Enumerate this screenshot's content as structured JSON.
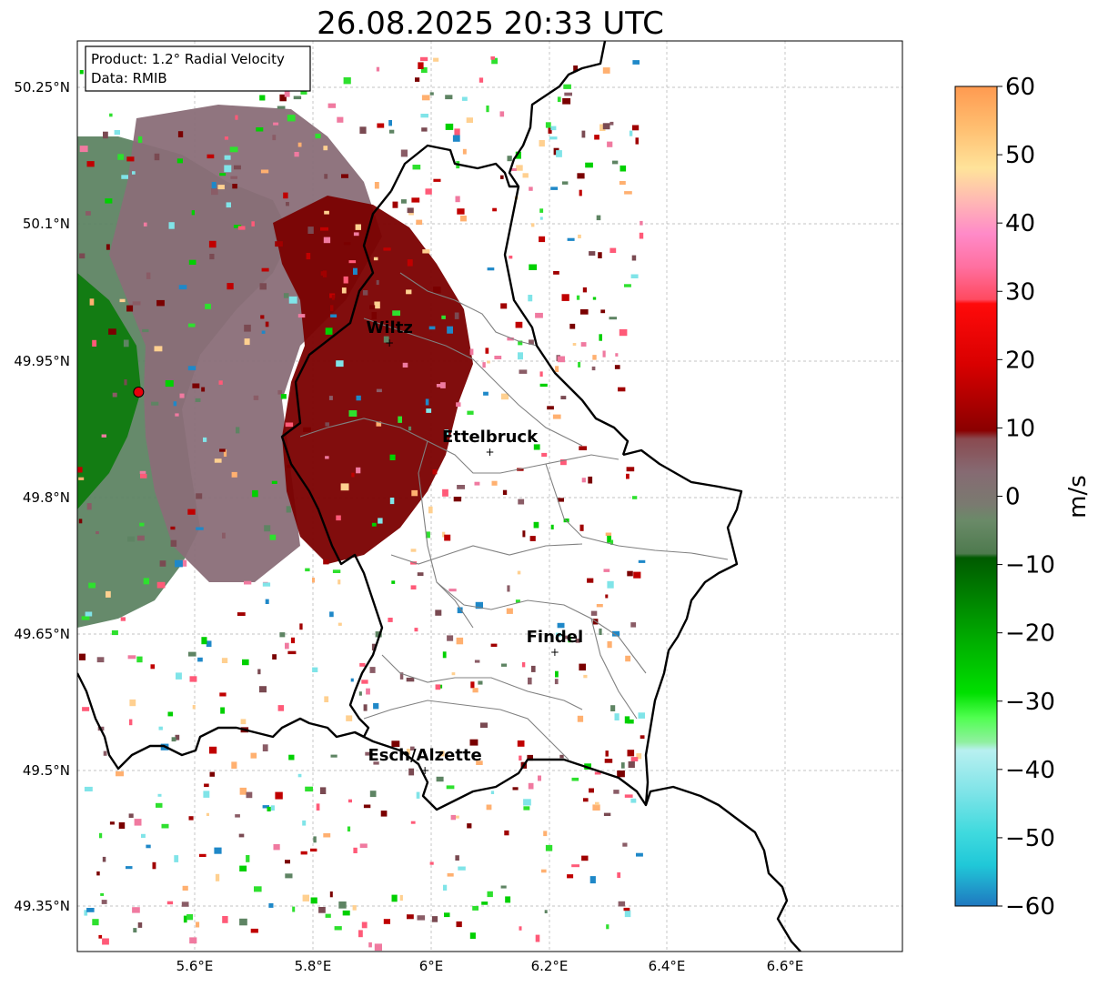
{
  "title": "26.08.2025 20:33 UTC",
  "info_box": {
    "product": "Product: 1.2° Radial Velocity",
    "data": "Data: RMIB"
  },
  "lat_ticks": [
    "50.25°N",
    "50.1°N",
    "49.95°N",
    "49.8°N",
    "49.65°N",
    "49.5°N",
    "49.35°N"
  ],
  "lon_ticks": [
    "5.6°E",
    "5.8°E",
    "6°E",
    "6.2°E",
    "6.4°E",
    "6.6°E"
  ],
  "cities": [
    {
      "name": "Wiltz",
      "lon": 5.93,
      "lat": 49.97
    },
    {
      "name": "Ettelbruck",
      "lon": 6.1,
      "lat": 49.85
    },
    {
      "name": "Findel",
      "lon": 6.21,
      "lat": 49.63
    },
    {
      "name": "Esch/Alzette",
      "lon": 5.99,
      "lat": 49.5
    }
  ],
  "radar_site": {
    "lon": 5.505,
    "lat": 49.915,
    "color": "#e8000b"
  },
  "colorbar": {
    "label": "m/s",
    "ticks": [
      "60",
      "50",
      "40",
      "30",
      "20",
      "10",
      "0",
      "−10",
      "−20",
      "−30",
      "−40",
      "−50",
      "−60"
    ],
    "min": -60,
    "max": 60
  },
  "colors": {
    "inbound_green": "#007a00",
    "light_green": "#5e8a5e",
    "outbound_red": "#7d0000",
    "light_red": "#8a5c66",
    "border": "#000000",
    "canton": "#808080"
  }
}
